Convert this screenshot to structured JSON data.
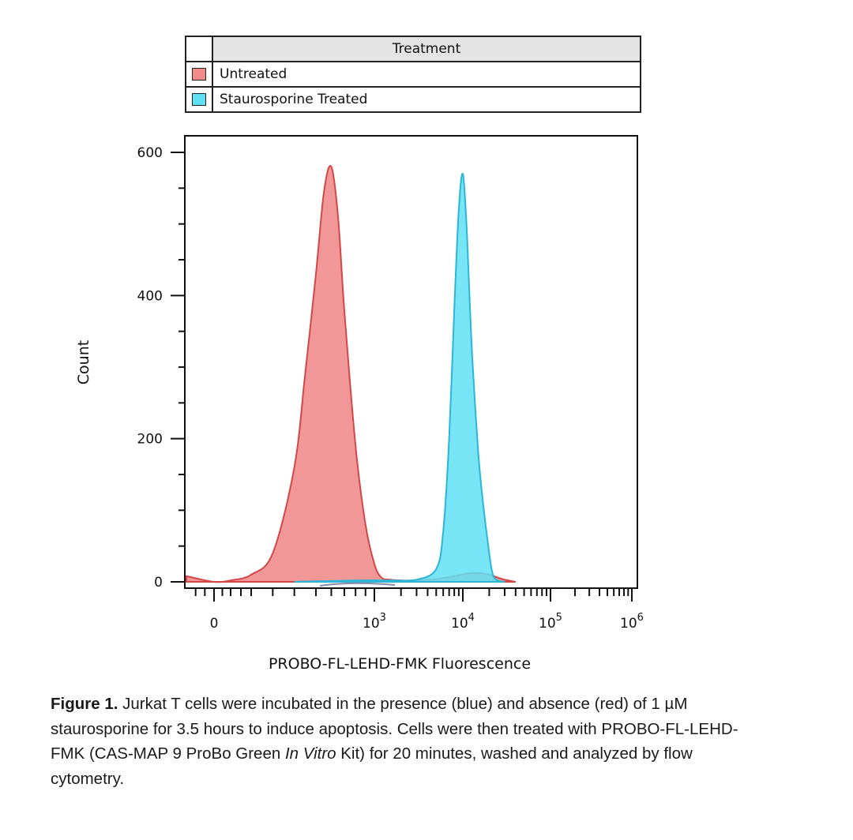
{
  "legend": {
    "header": "Treatment",
    "items": [
      {
        "label": "Untreated",
        "color": "#f08c8c"
      },
      {
        "label": "Staurosporine Treated",
        "color": "#5fe0f4"
      }
    ]
  },
  "chart_data": {
    "type": "area",
    "xlabel": "PROBO-FL-LEHD-FMK Fluorescence",
    "ylabel": "Count",
    "x_scale": "biexponential",
    "x_tick_labels": [
      {
        "base": "0",
        "exp": ""
      },
      {
        "base": "10",
        "exp": "3"
      },
      {
        "base": "10",
        "exp": "4"
      },
      {
        "base": "10",
        "exp": "5"
      },
      {
        "base": "10",
        "exp": "6"
      }
    ],
    "y_tick_labels": [
      "0",
      "200",
      "400",
      "600"
    ],
    "ylim": [
      0,
      630
    ],
    "series": [
      {
        "name": "Untreated",
        "fill": "#f08c8c",
        "stroke": "#d24848",
        "x": [
          -150,
          0,
          100,
          200,
          300,
          400,
          450,
          500,
          550,
          600,
          650,
          700,
          800,
          900,
          1000,
          1200,
          1500,
          2000,
          3000,
          5000,
          8000,
          12000,
          16000,
          20000,
          25000,
          30000,
          40000
        ],
        "values": [
          8,
          0,
          2,
          10,
          40,
          160,
          290,
          430,
          545,
          580,
          510,
          380,
          190,
          80,
          25,
          6,
          3,
          2,
          2,
          4,
          8,
          12,
          12,
          10,
          6,
          3,
          0
        ]
      },
      {
        "name": "Staurosporine Treated",
        "fill": "#5fe0f4",
        "stroke": "#2bb6d6",
        "x": [
          400,
          800,
          1500,
          3000,
          5000,
          6000,
          7000,
          8000,
          9000,
          10000,
          11000,
          12000,
          13000,
          15000,
          17000,
          20000,
          22000,
          25000,
          30000
        ],
        "values": [
          0,
          2,
          2,
          3,
          18,
          70,
          200,
          380,
          520,
          570,
          500,
          390,
          300,
          180,
          110,
          40,
          10,
          2,
          0
        ]
      }
    ]
  },
  "caption": {
    "label": "Figure 1.",
    "text1": " Jurkat T cells were incubated in the presence (blue) and absence (red) of 1 µM staurosporine for 3.5 hours to induce apoptosis. Cells were then treated with PROBO-FL-LEHD-FMK (CAS-MAP 9 ProBo Green ",
    "italic": "In Vitro",
    "text2": " Kit) for 20 minutes, washed and analyzed by flow cytometry."
  }
}
